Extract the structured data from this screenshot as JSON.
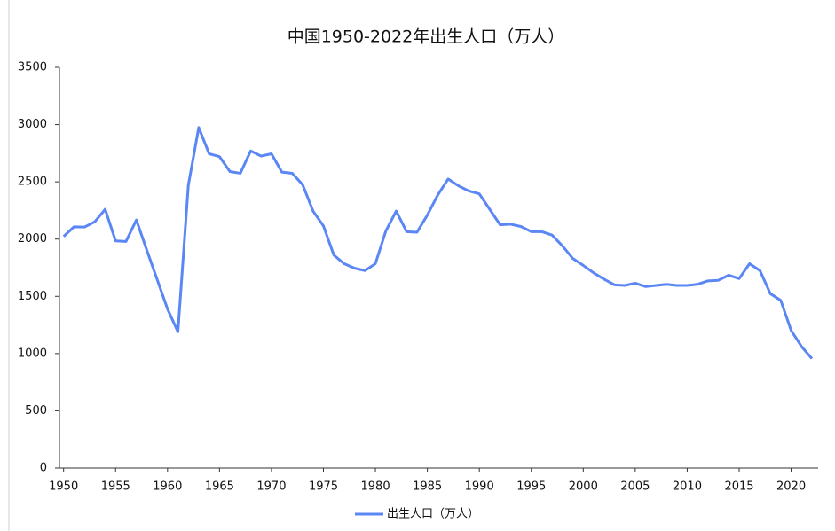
{
  "chart_data": {
    "type": "line",
    "title": "中国1950-2022年出生人口（万人）",
    "x": [
      1950,
      1951,
      1952,
      1953,
      1954,
      1955,
      1956,
      1957,
      1958,
      1959,
      1960,
      1961,
      1962,
      1963,
      1964,
      1965,
      1966,
      1967,
      1968,
      1969,
      1970,
      1971,
      1972,
      1973,
      1974,
      1975,
      1976,
      1977,
      1978,
      1979,
      1980,
      1981,
      1982,
      1983,
      1984,
      1985,
      1986,
      1987,
      1988,
      1989,
      1990,
      1991,
      1992,
      1993,
      1994,
      1995,
      1996,
      1997,
      1998,
      1999,
      2000,
      2001,
      2002,
      2003,
      2004,
      2005,
      2006,
      2007,
      2008,
      2009,
      2010,
      2011,
      2012,
      2013,
      2014,
      2015,
      2016,
      2017,
      2018,
      2019,
      2020,
      2021,
      2022
    ],
    "series": [
      {
        "name": "出生人口（万人）",
        "color": "#5b87f5",
        "values": [
          2023,
          2107,
          2105,
          2151,
          2260,
          1984,
          1979,
          2167,
          1905,
          1647,
          1389,
          1190,
          2470,
          2975,
          2745,
          2720,
          2590,
          2575,
          2770,
          2725,
          2745,
          2585,
          2575,
          2475,
          2245,
          2115,
          1860,
          1785,
          1745,
          1725,
          1785,
          2070,
          2245,
          2065,
          2060,
          2210,
          2385,
          2525,
          2465,
          2420,
          2395,
          2260,
          2125,
          2130,
          2110,
          2065,
          2065,
          2035,
          1940,
          1830,
          1770,
          1705,
          1650,
          1600,
          1595,
          1615,
          1585,
          1595,
          1605,
          1595,
          1595,
          1605,
          1635,
          1640,
          1685,
          1655,
          1785,
          1725,
          1523,
          1465,
          1202,
          1062,
          956
        ]
      }
    ],
    "xlim": [
      1949.6,
      2022.6
    ],
    "xticks": [
      1950,
      1955,
      1960,
      1965,
      1970,
      1975,
      1980,
      1985,
      1990,
      1995,
      2000,
      2005,
      2010,
      2015,
      2020
    ],
    "ylim": [
      0,
      3500
    ],
    "yticks": [
      0,
      500,
      1000,
      1500,
      2000,
      2500,
      3000,
      3500
    ],
    "grid": false,
    "legend": "bottom"
  }
}
